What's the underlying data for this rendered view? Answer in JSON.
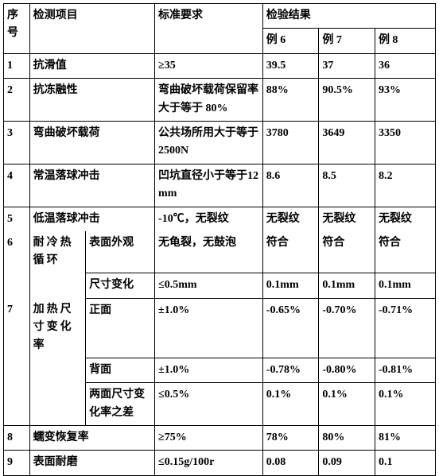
{
  "header": {
    "num": "序号",
    "item": "检测项目",
    "std": "标准要求",
    "results": "检验结果",
    "r1": "例 6",
    "r2": "例 7",
    "r3": "例 8"
  },
  "rows": {
    "r1": {
      "num": "1",
      "item": "抗滑值",
      "std": "≥35",
      "v1": "39.5",
      "v2": "37",
      "v3": "36"
    },
    "r2": {
      "num": "2",
      "item": "抗冻融性",
      "std": "弯曲破坏载荷保留率大于等于 80%",
      "v1": "88%",
      "v2": "90.5%",
      "v3": "93%"
    },
    "r3": {
      "num": "3",
      "item": "弯曲破坏载荷",
      "std": "公共场所用大于等于 2500N",
      "v1": "3780",
      "v2": "3649",
      "v3": "3350"
    },
    "r4": {
      "num": "4",
      "item": "常温落球冲击",
      "std": "凹坑直径小于等于12mm",
      "v1": "8.6",
      "v2": "8.5",
      "v3": "8.2"
    },
    "r5": {
      "num": "5",
      "item": "低温落球冲击",
      "std": "-10℃，无裂纹",
      "v1": "无裂纹",
      "v2": "无裂纹",
      "v3": "无裂纹"
    },
    "r6": {
      "num": "6",
      "item1": "耐冷热循环",
      "item2": "表面外观",
      "std": "无龟裂，无鼓泡",
      "v1": "符合",
      "v2": "符合",
      "v3": "符合"
    },
    "r6b": {
      "item2": "尺寸变化",
      "std": "≤0.5mm",
      "v1": "0.1mm",
      "v2": "0.1mm",
      "v3": "0.1mm"
    },
    "r7a": {
      "num": "7",
      "item1": "加热尺寸变化率",
      "item2": "正面",
      "std": "±1.0%",
      "v1": "-0.65%",
      "v2": "-0.70%",
      "v3": "-0.71%"
    },
    "r7b": {
      "item2": "背面",
      "std": "±1.0%",
      "v1": "-0.78%",
      "v2": "-0.80%",
      "v3": "-0.81%"
    },
    "r7c": {
      "item2": "两面尺寸变化率之差",
      "std": "≤0.5%",
      "v1": "0.1%",
      "v2": "0.1%",
      "v3": "0.1%"
    },
    "r8": {
      "num": "8",
      "item": "蠕变恢复率",
      "std": "≥75%",
      "v1": "78%",
      "v2": "80%",
      "v3": "81%"
    },
    "r9": {
      "num": "9",
      "item": "表面耐磨",
      "std": "≤0.15g/100r",
      "v1": "0.08",
      "v2": "0.09",
      "v3": "0.1"
    }
  }
}
